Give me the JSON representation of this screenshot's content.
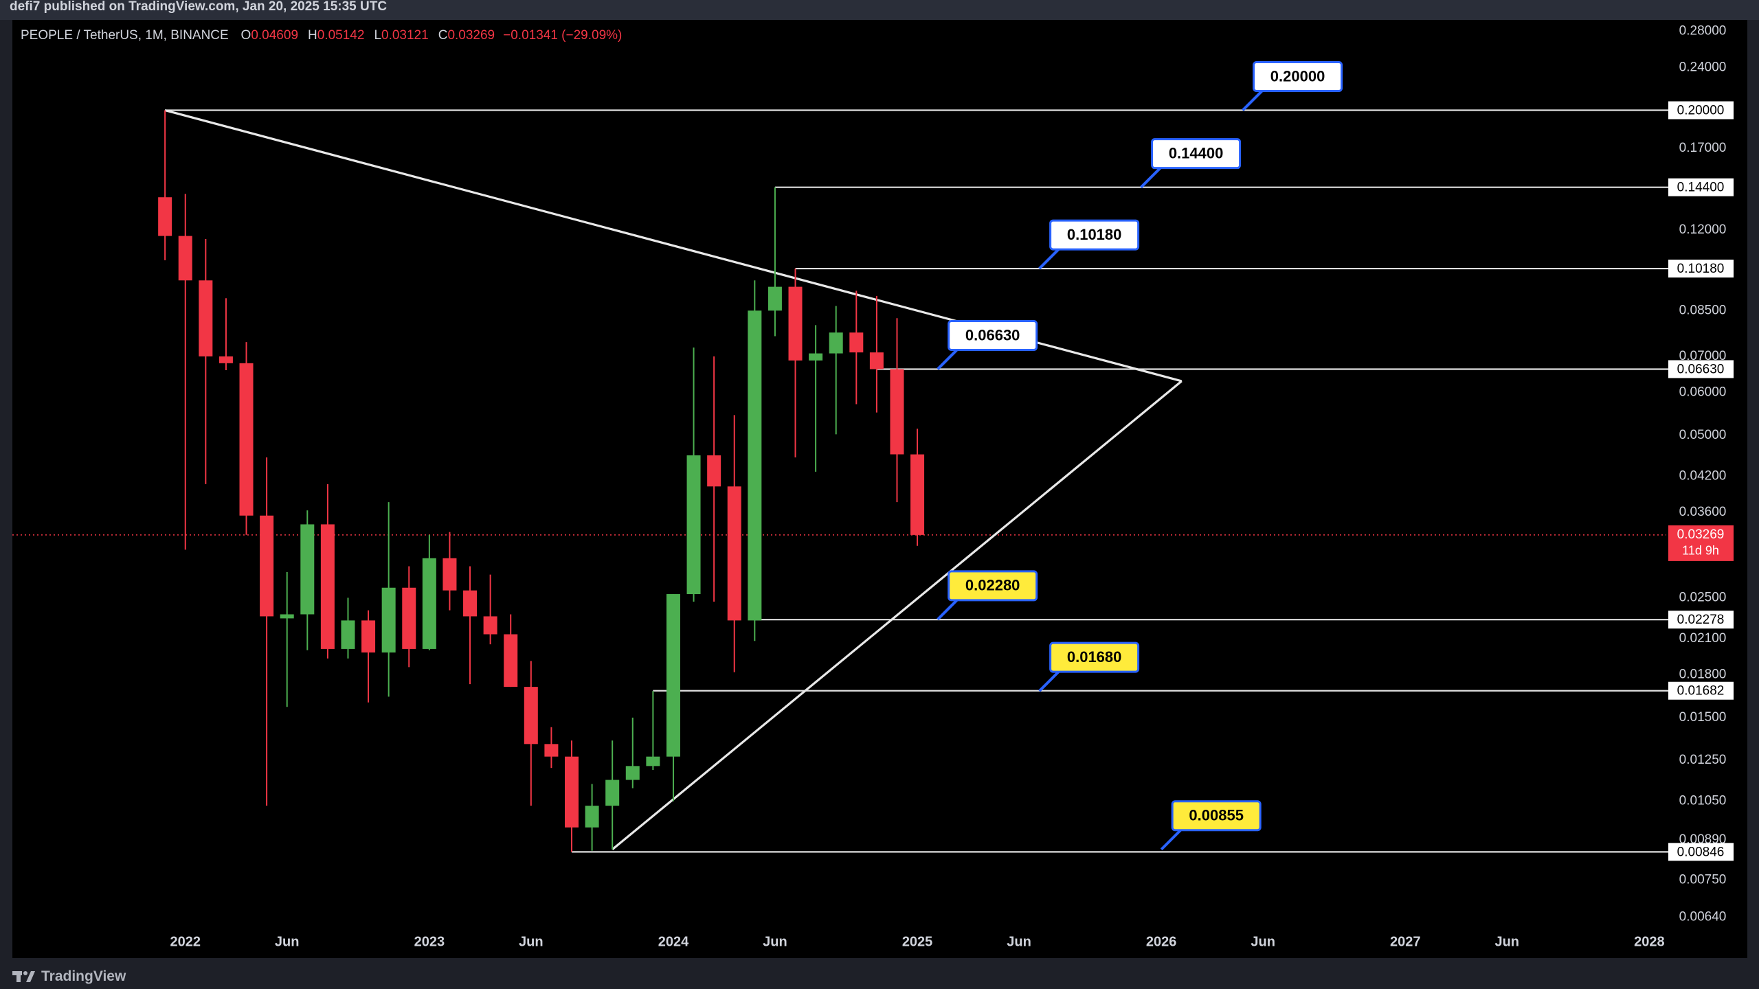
{
  "header": {
    "published": "defi7 published on TradingView.com, Jan 20, 2025 15:35 UTC"
  },
  "footer": {
    "brand": "TradingView"
  },
  "chart_data": {
    "type": "candlestick",
    "title": "PEOPLE / TetherUS, 1M, BINANCE",
    "ohlc_keys": [
      "O",
      "H",
      "L",
      "C"
    ],
    "change": "−0.01341 (−29.09%)",
    "x": [
      "2021-12",
      "2022-01",
      "2022-02",
      "2022-03",
      "2022-04",
      "2022-05",
      "2022-06",
      "2022-07",
      "2022-08",
      "2022-09",
      "2022-10",
      "2022-11",
      "2022-12",
      "2023-01",
      "2023-02",
      "2023-03",
      "2023-04",
      "2023-05",
      "2023-06",
      "2023-07",
      "2023-08",
      "2023-09",
      "2023-10",
      "2023-11",
      "2023-12",
      "2024-01",
      "2024-02",
      "2024-03",
      "2024-04",
      "2024-05",
      "2024-06",
      "2024-07",
      "2024-08",
      "2024-09",
      "2024-10",
      "2024-11",
      "2024-12",
      "2025-01"
    ],
    "open": [
      0.138,
      0.117,
      0.0968,
      0.07,
      0.068,
      0.0355,
      0.0229,
      0.0233,
      0.0342,
      0.0201,
      0.0227,
      0.0198,
      0.0261,
      0.0201,
      0.0296,
      0.0258,
      0.0231,
      0.0214,
      0.0171,
      0.0134,
      0.0127,
      0.00939,
      0.0103,
      0.0115,
      0.0122,
      0.0127,
      0.0254,
      0.0459,
      0.0402,
      0.0227,
      0.0851,
      0.0942,
      0.0688,
      0.0709,
      0.0775,
      0.0712,
      0.0663,
      0.04609
    ],
    "high": [
      0.2,
      0.14,
      0.1155,
      0.0897,
      0.0744,
      0.0455,
      0.0279,
      0.0363,
      0.0406,
      0.025,
      0.0237,
      0.0376,
      0.0286,
      0.0327,
      0.0331,
      0.0286,
      0.0276,
      0.0233,
      0.0191,
      0.0144,
      0.0136,
      0.0113,
      0.0136,
      0.015,
      0.0168,
      0.0254,
      0.0727,
      0.07,
      0.0545,
      0.0968,
      0.144,
      0.1018,
      0.08,
      0.0868,
      0.0926,
      0.0906,
      0.0824,
      0.05142
    ],
    "low": [
      0.1055,
      0.0307,
      0.0406,
      0.066,
      0.0327,
      0.0103,
      0.0157,
      0.02,
      0.0193,
      0.0193,
      0.016,
      0.0164,
      0.0186,
      0.02,
      0.0237,
      0.0173,
      0.0205,
      0.0171,
      0.0103,
      0.0121,
      0.00846,
      0.0085,
      0.00855,
      0.0111,
      0.012,
      0.0105,
      0.0246,
      0.0246,
      0.0182,
      0.0208,
      0.0763,
      0.0455,
      0.0428,
      0.0502,
      0.0571,
      0.0551,
      0.0376,
      0.03121
    ],
    "close": [
      0.117,
      0.0968,
      0.07,
      0.068,
      0.0355,
      0.0231,
      0.0233,
      0.0342,
      0.0201,
      0.0227,
      0.0198,
      0.0261,
      0.0201,
      0.0296,
      0.0258,
      0.0231,
      0.0214,
      0.0171,
      0.0134,
      0.0127,
      0.00939,
      0.0103,
      0.0115,
      0.0122,
      0.0127,
      0.0254,
      0.0459,
      0.0402,
      0.0227,
      0.0851,
      0.0942,
      0.0688,
      0.0709,
      0.0775,
      0.0712,
      0.0663,
      0.0461,
      0.03269
    ],
    "up_color": "#4caf50",
    "down_color": "#f23645",
    "log_scale": true,
    "grid": false,
    "ylim": [
      0.0061,
      0.294
    ],
    "yticks": [
      {
        "value": 0.28,
        "label": "0.28000"
      },
      {
        "value": 0.24,
        "label": "0.24000"
      },
      {
        "value": 0.17,
        "label": "0.17000"
      },
      {
        "value": 0.12,
        "label": "0.12000"
      },
      {
        "value": 0.085,
        "label": "0.08500"
      },
      {
        "value": 0.07,
        "label": "0.07000"
      },
      {
        "value": 0.06,
        "label": "0.06000"
      },
      {
        "value": 0.05,
        "label": "0.05000"
      },
      {
        "value": 0.042,
        "label": "0.04200"
      },
      {
        "value": 0.036,
        "label": "0.03600"
      },
      {
        "value": 0.025,
        "label": "0.02500"
      },
      {
        "value": 0.021,
        "label": "0.02100"
      },
      {
        "value": 0.018,
        "label": "0.01800"
      },
      {
        "value": 0.015,
        "label": "0.01500"
      },
      {
        "value": 0.0125,
        "label": "0.01250"
      },
      {
        "value": 0.0105,
        "label": "0.01050"
      },
      {
        "value": 0.0089,
        "label": "0.00890"
      },
      {
        "value": 0.0075,
        "label": "0.00750"
      },
      {
        "value": 0.0064,
        "label": "0.00640"
      }
    ],
    "xlim": [
      "2021-05",
      "2028-02"
    ],
    "xticks": [
      {
        "value": "2022-01",
        "label": "2022"
      },
      {
        "value": "2022-06",
        "label": "Jun"
      },
      {
        "value": "2023-01",
        "label": "2023"
      },
      {
        "value": "2023-06",
        "label": "Jun"
      },
      {
        "value": "2024-01",
        "label": "2024"
      },
      {
        "value": "2024-06",
        "label": "Jun"
      },
      {
        "value": "2025-01",
        "label": "2025"
      },
      {
        "value": "2025-06",
        "label": "Jun"
      },
      {
        "value": "2026-01",
        "label": "2026"
      },
      {
        "value": "2026-06",
        "label": "Jun"
      },
      {
        "value": "2027-01",
        "label": "2027"
      },
      {
        "value": "2027-06",
        "label": "Jun"
      },
      {
        "value": "2028-01",
        "label": "2028"
      }
    ],
    "levels": [
      {
        "value": 0.2,
        "label": "0.20000",
        "from": "2021-12"
      },
      {
        "value": 0.144,
        "label": "0.14400",
        "from": "2024-06"
      },
      {
        "value": 0.1018,
        "label": "0.10180",
        "from": "2024-07"
      },
      {
        "value": 0.0663,
        "label": "0.06630",
        "from": "2024-11"
      },
      {
        "value": 0.02278,
        "label": "0.02278",
        "from": "2024-05"
      },
      {
        "value": 0.01682,
        "label": "0.01682",
        "from": "2023-12"
      },
      {
        "value": 0.00846,
        "label": "0.00846",
        "from": "2023-08"
      }
    ],
    "callouts": [
      {
        "value": 0.2,
        "label": "0.20000",
        "at": "2026-05",
        "color": "#ffffff"
      },
      {
        "value": 0.144,
        "label": "0.14400",
        "at": "2025-12",
        "color": "#ffffff"
      },
      {
        "value": 0.1018,
        "label": "0.10180",
        "at": "2025-07",
        "color": "#ffffff"
      },
      {
        "value": 0.0663,
        "label": "0.06630",
        "at": "2025-02",
        "color": "#ffffff"
      },
      {
        "value": 0.0228,
        "label": "0.02280",
        "at": "2025-02",
        "color": "#ffeb3b"
      },
      {
        "value": 0.0168,
        "label": "0.01680",
        "at": "2025-07",
        "color": "#ffeb3b"
      },
      {
        "value": 0.00855,
        "label": "0.00855",
        "at": "2026-01",
        "color": "#ffeb3b"
      }
    ],
    "trendlines": [
      {
        "x": [
          "2021-12",
          "2026-02"
        ],
        "y": [
          0.2,
          0.063
        ]
      },
      {
        "x": [
          "2023-10",
          "2026-02"
        ],
        "y": [
          0.00855,
          0.063
        ]
      }
    ],
    "countdown": "11d 9h"
  }
}
